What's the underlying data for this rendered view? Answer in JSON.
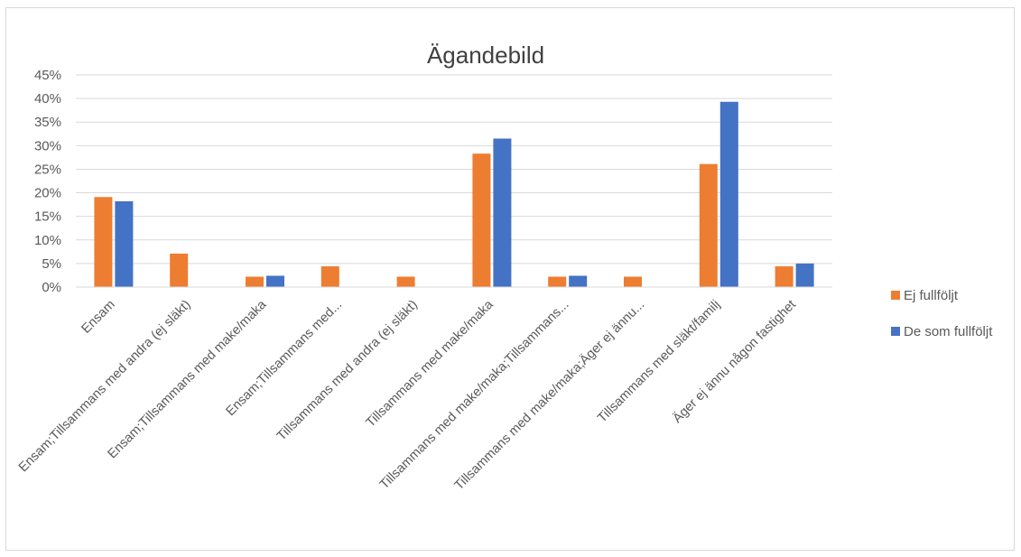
{
  "chart_data": {
    "type": "bar",
    "title": "Ägandebild",
    "categories": [
      "Ensam",
      "Ensam;Tillsammans med andra (ej släkt)",
      "Ensam;Tillsammans med make/maka",
      "Ensam;Tillsammans med...",
      "Tillsammans med andra (ej släkt)",
      "Tillsammans med make/maka",
      "Tillsammans med make/maka;Tillsammans...",
      "Tillsammans med make/maka;Äger ej ännu...",
      "Tillsammans med släkt/familj",
      "Äger ej ännu någon fastighet"
    ],
    "series": [
      {
        "name": "Ej fullföljt",
        "color": "#ED7D31",
        "values": [
          19.1,
          7.1,
          2.2,
          4.4,
          2.2,
          28.3,
          2.2,
          2.2,
          26.1,
          4.4
        ]
      },
      {
        "name": "De som fullföljt",
        "color": "#4472C4",
        "values": [
          18.2,
          0,
          2.4,
          0,
          0,
          31.5,
          2.4,
          0,
          39.3,
          5.0
        ]
      }
    ],
    "yaxis": {
      "min": 0,
      "max": 45,
      "step": 5,
      "tick_labels": [
        "0%",
        "5%",
        "10%",
        "15%",
        "20%",
        "25%",
        "30%",
        "35%",
        "40%",
        "45%"
      ]
    },
    "grid": true,
    "legend_position": "right"
  }
}
